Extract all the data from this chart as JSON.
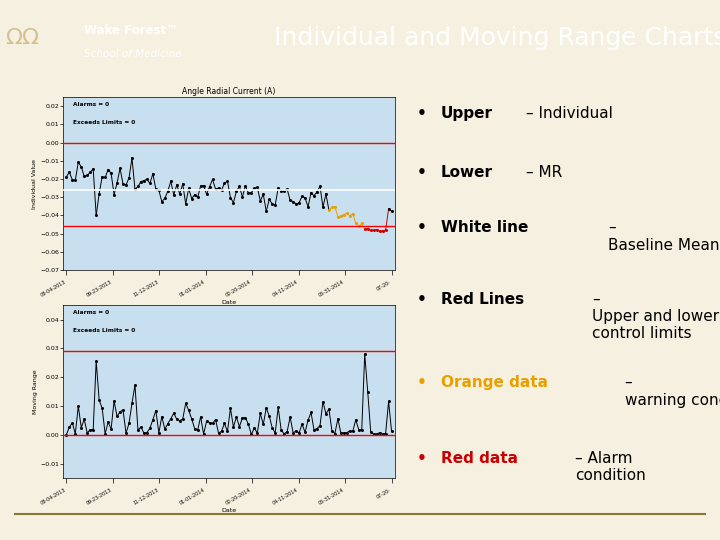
{
  "title": "Individual and Moving Range Charts",
  "header_black_bg": "#0a0a0a",
  "title_bg": "#8B7535",
  "slide_bg": "#F5F0E0",
  "chart_outer_bg": "#5B9BD5",
  "chart_inner_bg": "#C8DFF0",
  "upper_chart_title": "Angle Radial Current (A)",
  "upper_ylabel": "Individual Value",
  "upper_xlabel": "Date",
  "lower_ylabel": "Moving Range",
  "lower_xlabel": "Date",
  "upper_alarm_text": "Alarms = 0",
  "upper_exceeds_text": "Exceeds Limits = 0",
  "lower_alarm_text": "Alarms = 0",
  "lower_exceeds_text": "Exceeds Limits = 0",
  "upper_ylim": [
    -0.07,
    0.025
  ],
  "lower_ylim": [
    -0.015,
    0.045
  ],
  "upper_yticks": [
    0.02,
    0.01,
    0.0,
    -0.01,
    -0.02,
    -0.03,
    -0.04,
    -0.05,
    -0.06,
    -0.07
  ],
  "lower_yticks": [
    0.04,
    0.03,
    0.02,
    0.01,
    0.0,
    -0.01
  ],
  "upper_red_line_upper": 0.0,
  "upper_red_line_lower": -0.046,
  "upper_white_line": -0.026,
  "lower_red_line_upper": 0.029,
  "lower_red_line_lower": 0.0,
  "date_labels": [
    "08-04-2013",
    "09-23-2013",
    "11-12-2013",
    "01-01-2014",
    "02-20-2014",
    "04-11-2014",
    "05-31-2014",
    "07-20-"
  ],
  "orange_color": "#E8A000",
  "red_color": "#CC0000",
  "title_fontsize": 18,
  "footer_line_color": "#8B7535"
}
